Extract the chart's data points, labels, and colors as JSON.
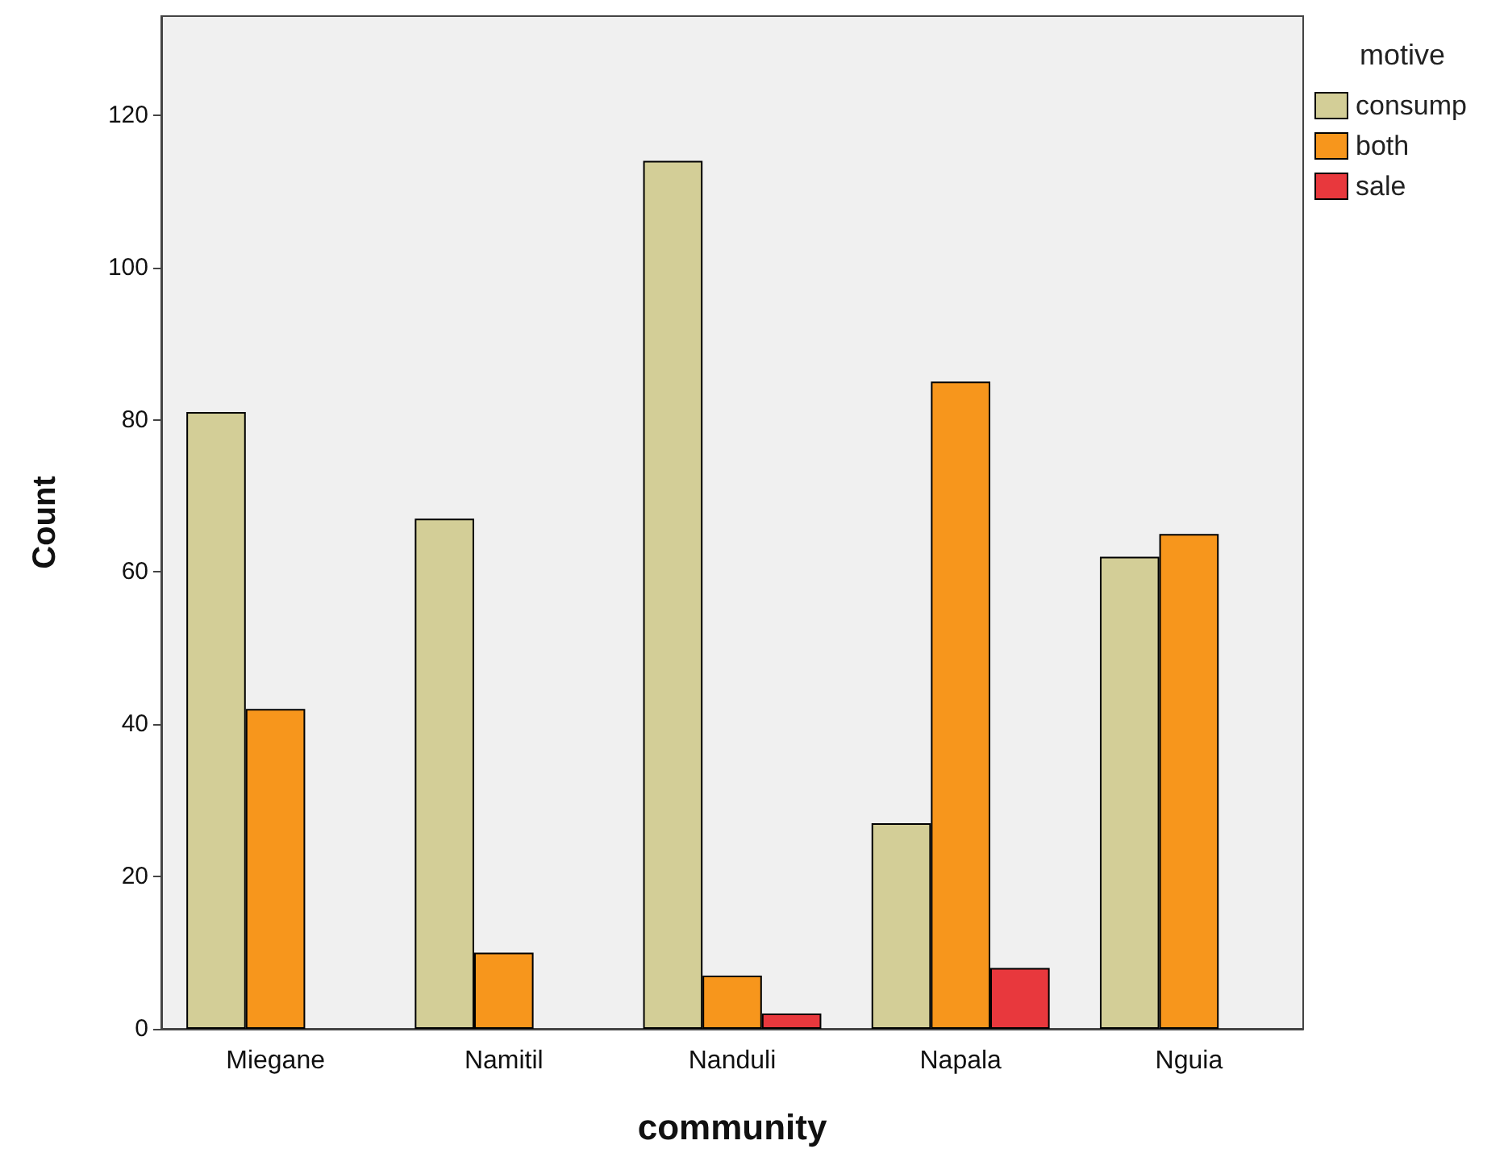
{
  "chart_data": {
    "type": "bar",
    "xlabel": "community",
    "ylabel": "Count",
    "legend_title": "motive",
    "categories": [
      "Miegane",
      "Namitil",
      "Nanduli",
      "Napala",
      "Nguia"
    ],
    "series": [
      {
        "name": "consump",
        "color": "#d3ce97",
        "values": [
          81,
          67,
          114,
          27,
          62
        ]
      },
      {
        "name": "both",
        "color": "#f7961c",
        "values": [
          42,
          10,
          7,
          85,
          65
        ]
      },
      {
        "name": "sale",
        "color": "#e8383d",
        "values": [
          null,
          null,
          2,
          8,
          null
        ]
      }
    ],
    "ylim": [
      0,
      133
    ],
    "yticks": [
      0,
      20,
      40,
      60,
      80,
      100,
      120
    ],
    "grid": false,
    "legend": "top right"
  }
}
